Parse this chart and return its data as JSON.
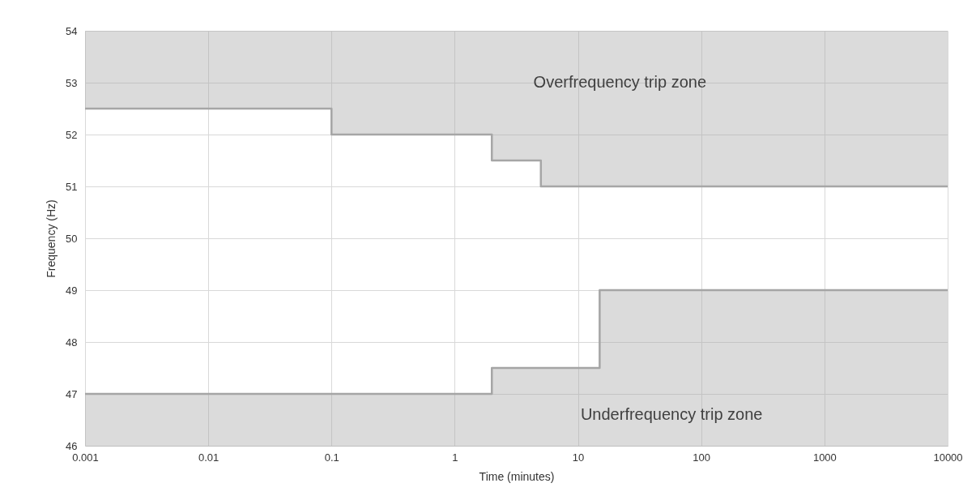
{
  "chart_data": {
    "type": "line",
    "xlabel": "Time (minutes)",
    "ylabel": "Frequency (Hz)",
    "log": "x",
    "grid": true,
    "xlim": [
      0.001,
      10000
    ],
    "xticks": [
      0.001,
      0.01,
      0.1,
      1,
      10,
      100,
      1000,
      10000
    ],
    "ylim": [
      46,
      54
    ],
    "yticks": [
      46,
      47,
      48,
      49,
      50,
      51,
      52,
      53,
      54
    ],
    "series": [
      {
        "color": "#a6a6a6",
        "x": [
          0.001,
          0.1,
          0.1,
          2,
          2,
          5,
          5,
          10000
        ],
        "values": [
          52.5,
          52.5,
          52,
          52,
          51.5,
          51.5,
          51,
          51
        ],
        "lower": [
          52.5,
          52.5,
          52,
          52,
          51.5,
          51.5,
          51,
          51
        ],
        "upper": [
          54,
          54,
          54,
          54,
          54,
          54,
          54,
          54
        ]
      },
      {
        "color": "#a5a5a5",
        "x": [
          0.001,
          2,
          2,
          15,
          15,
          10000
        ],
        "values": [
          47,
          47,
          47.5,
          47.5,
          49,
          49
        ],
        "lower": [
          46,
          46,
          46,
          46,
          46,
          46
        ],
        "upper": [
          47,
          47,
          47.5,
          47.5,
          49,
          49
        ]
      }
    ],
    "annotations": [
      "Overfrequency trip zone",
      "Underfrequency trip zone"
    ]
  }
}
